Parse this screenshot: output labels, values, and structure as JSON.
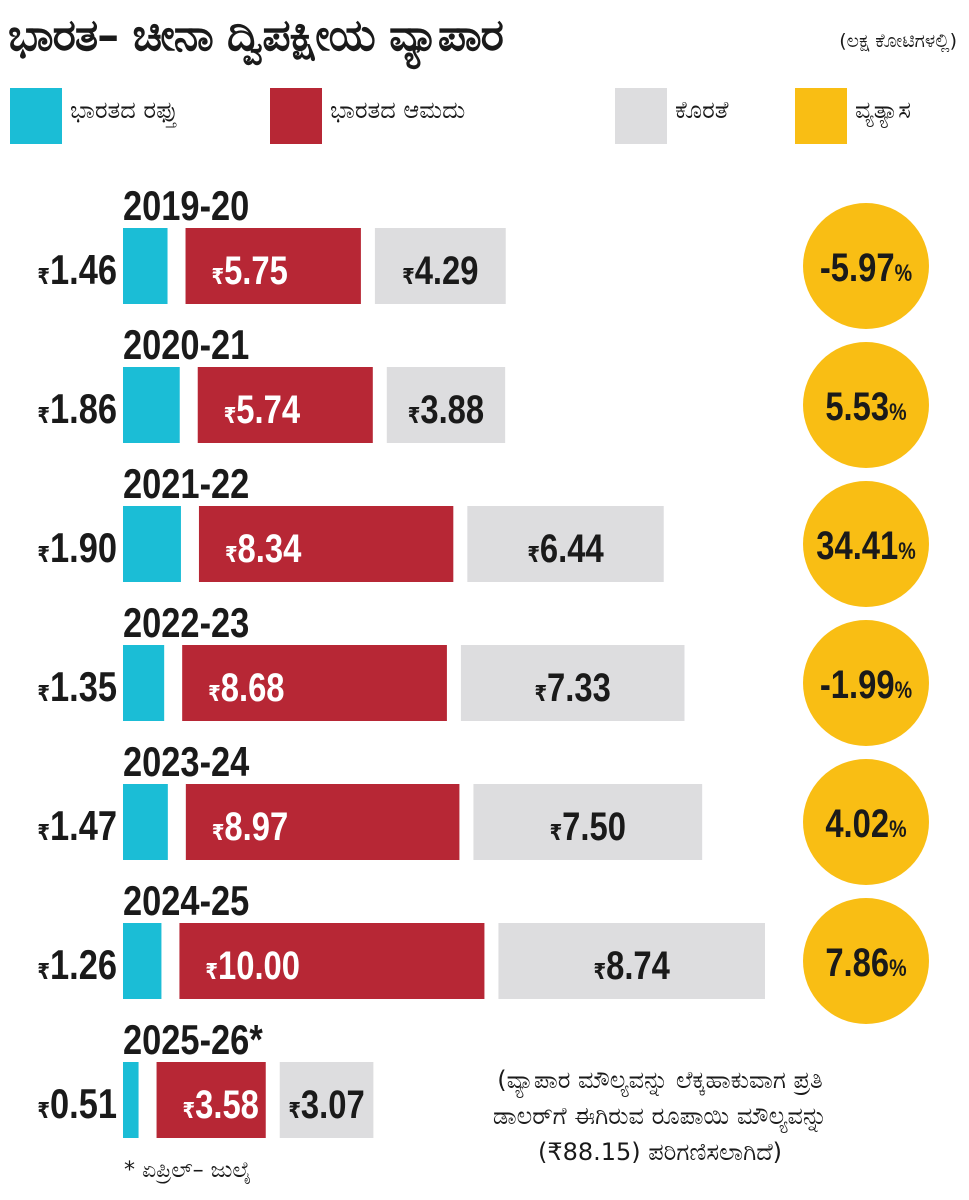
{
  "title": "ಭಾರತ– ಚೀನಾ ದ್ವಿಪಕ್ಷೀಯ ವ್ಯಾಪಾರ",
  "subtitle": "(ಲಕ್ಷ ಕೋಟಿಗಳಲ್ಲಿ)",
  "currency_symbol": "₹",
  "percent_symbol": "%",
  "colors": {
    "exports": "#1bbdd6",
    "imports": "#b72735",
    "deficit": "#dddddf",
    "difference": "#f9be14"
  },
  "legend": [
    {
      "key": "exports",
      "label": "ಭಾರತದ ರಫ್ತು"
    },
    {
      "key": "imports",
      "label": "ಭಾರತದ ಆಮದು"
    },
    {
      "key": "deficit",
      "label": "ಕೊರತೆ"
    },
    {
      "key": "difference",
      "label": "ವ್ಯತ್ಯಾಸ"
    }
  ],
  "chart_data": {
    "type": "bar",
    "categories": [
      "2019-20",
      "2020-21",
      "2021-22",
      "2022-23",
      "2023-24",
      "2024-25",
      "2025-26*"
    ],
    "series": [
      {
        "name": "ಭಾರತದ ರಫ್ತು",
        "values": [
          1.46,
          1.86,
          1.9,
          1.35,
          1.47,
          1.26,
          0.51
        ]
      },
      {
        "name": "ಭಾರತದ ಆಮದು",
        "values": [
          5.75,
          5.74,
          8.34,
          8.68,
          8.97,
          10.0,
          3.58
        ]
      },
      {
        "name": "ಕೊರತೆ",
        "values": [
          4.29,
          3.88,
          6.44,
          7.33,
          7.5,
          8.74,
          3.07
        ]
      },
      {
        "name": "ವ್ಯತ್ಯಾಸ",
        "values": [
          -5.97,
          5.53,
          34.41,
          -1.99,
          4.02,
          7.86,
          null
        ]
      }
    ],
    "value_labels": {
      "exports": [
        "1.46",
        "1.86",
        "1.90",
        "1.35",
        "1.47",
        "1.26",
        "0.51"
      ],
      "imports": [
        "5.75",
        "5.74",
        "8.34",
        "8.68",
        "8.97",
        "10.00",
        "3.58"
      ],
      "deficit": [
        "4.29",
        "3.88",
        "6.44",
        "7.33",
        "7.50",
        "8.74",
        "3.07"
      ],
      "difference": [
        "-5.97",
        "5.53",
        "34.41",
        "-1.99",
        "4.02",
        "7.86",
        null
      ]
    },
    "orientation": "horizontal",
    "grid": false,
    "legend_position": "top"
  },
  "note": {
    "line1": "(ವ್ಯಾಪಾರ ಮೌಲ್ಯವನ್ನು ಲೆಕ್ಕಹಾಕುವಾಗ ಪ್ರತಿ",
    "line2": "ಡಾಲರ್‌ಗೆ ಈಗಿರುವ ರೂಪಾಯಿ ಮೌಲ್ಯವನ್ನು",
    "line3": "(₹88.15) ಪರಿಗಣಿಸಲಾಗಿದೆ)"
  },
  "footnote": "* ಏಪ್ರಿಲ್– ಜುಲೈ"
}
